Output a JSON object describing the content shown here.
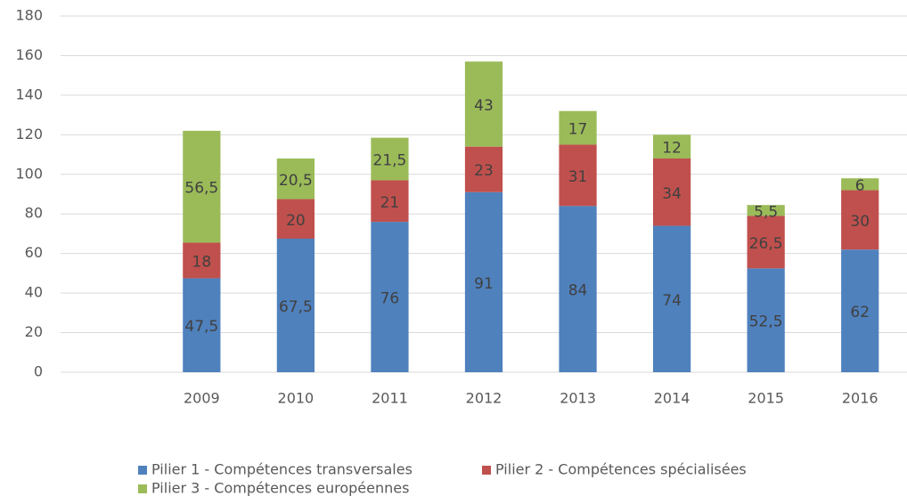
{
  "chart_data": {
    "type": "stacked_bar",
    "categories": [
      null,
      "2009",
      "2010",
      "2011",
      "2012",
      "2013",
      "2014",
      "2015",
      "2016"
    ],
    "series": [
      {
        "name": "Pilier 1 - Compétences transversales",
        "color": "#4f81bd",
        "values": [
          null,
          47.5,
          67.5,
          76,
          91,
          84,
          74,
          52.5,
          62
        ],
        "value_labels": [
          null,
          "47,5",
          "67,5",
          "76",
          "91",
          "84",
          "74",
          "52,5",
          "62"
        ]
      },
      {
        "name": "Pilier 2 - Compétences spécialisées",
        "color": "#c0504d",
        "values": [
          null,
          18,
          20,
          21,
          23,
          31,
          34,
          26.5,
          30
        ],
        "value_labels": [
          null,
          "18",
          "20",
          "21",
          "23",
          "31",
          "34",
          "26,5",
          "30"
        ]
      },
      {
        "name": "Pilier 3 - Compétences européennes",
        "color": "#9bbb59",
        "values": [
          null,
          56.5,
          20.5,
          21.5,
          43,
          17,
          12,
          5.5,
          6
        ],
        "value_labels": [
          null,
          "56,5",
          "20,5",
          "21,5",
          "43",
          "17",
          "12",
          "5,5",
          "6"
        ]
      }
    ],
    "ylim": [
      0,
      180
    ],
    "yticks": [
      0,
      20,
      40,
      60,
      80,
      100,
      120,
      140,
      160,
      180
    ],
    "grid": true
  }
}
